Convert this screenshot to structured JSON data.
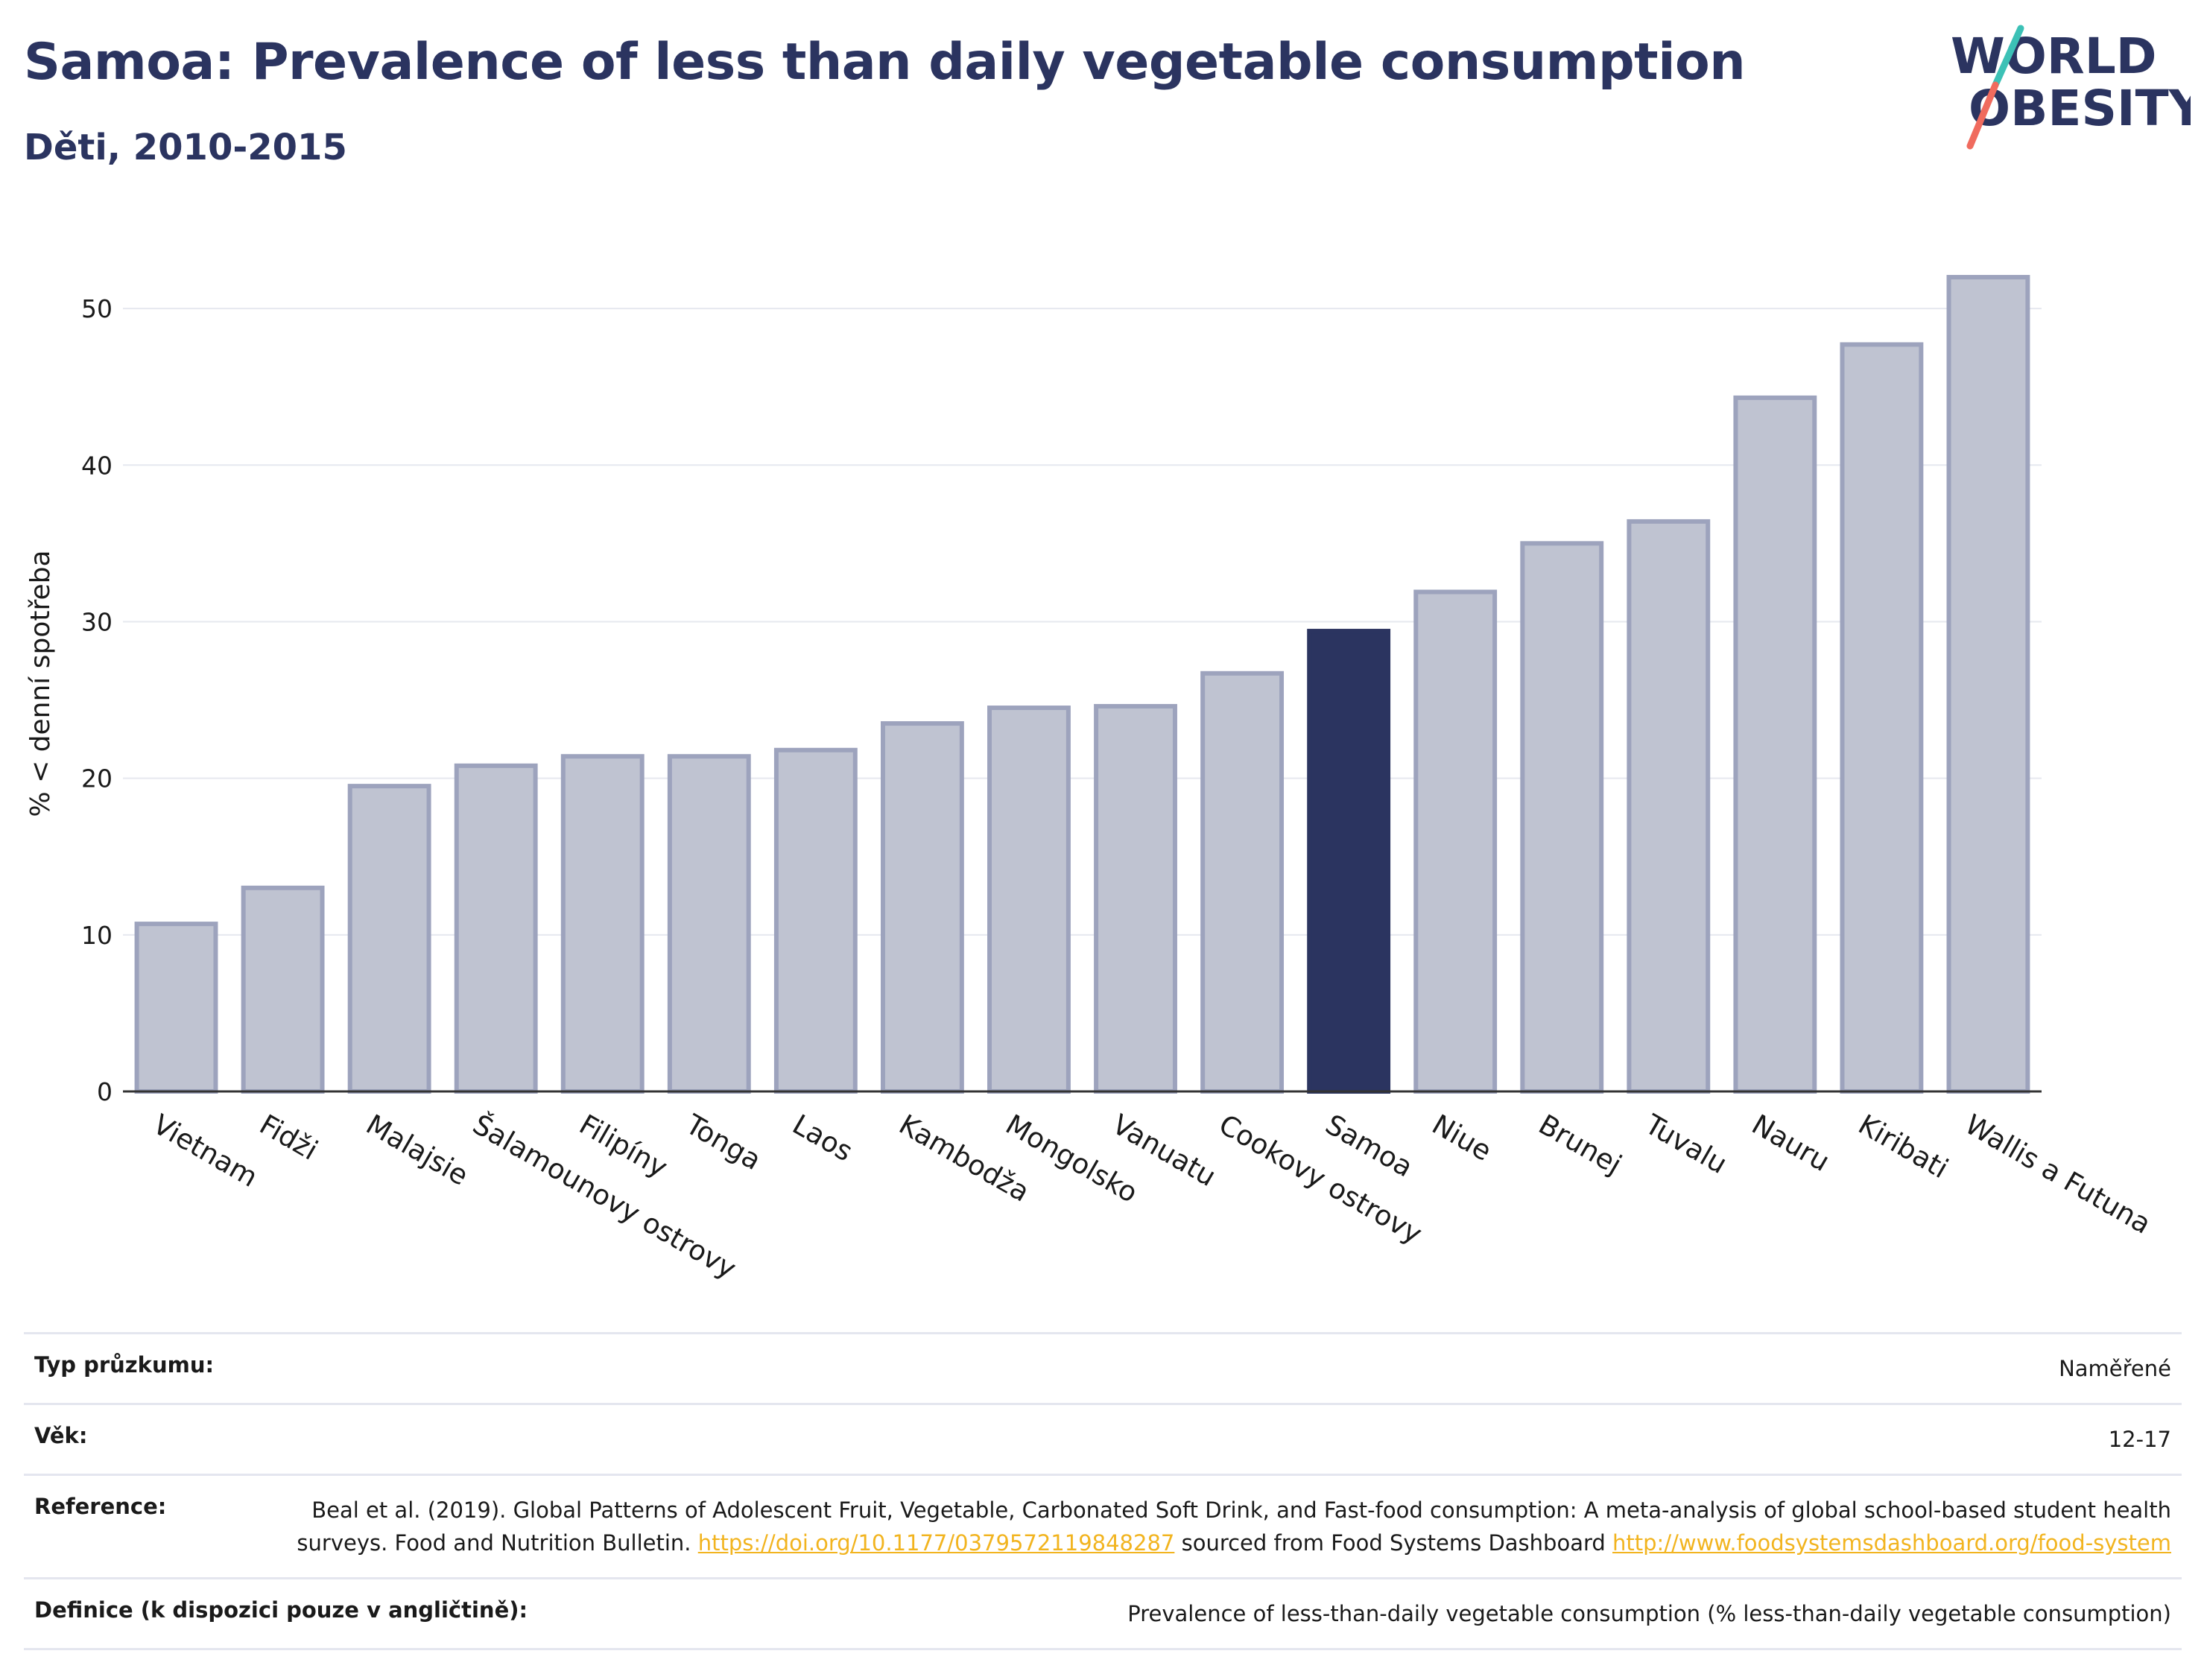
{
  "header": {
    "title": "Samoa: Prevalence of less than daily vegetable consumption",
    "subtitle": "Děti, 2010-2015"
  },
  "logo": {
    "line1": "WORLD",
    "line2": "OBESITY",
    "accent_teal": "#3cc1b6",
    "accent_coral": "#f06b5e"
  },
  "chart_data": {
    "type": "bar",
    "title": "Samoa: Prevalence of less than daily vegetable consumption",
    "subtitle": "Děti, 2010-2015",
    "xlabel": "",
    "ylabel": "% < denní spotřeba",
    "ylim": [
      0,
      54
    ],
    "yticks": [
      0,
      10,
      20,
      30,
      40,
      50
    ],
    "grid": true,
    "highlight": "Samoa",
    "colors": {
      "bar": "#bfc3d1",
      "bar_border": "#9da3bd",
      "highlight": "#2b3460",
      "grid": "#e6e8ef",
      "axis": "#333333"
    },
    "categories": [
      "Vietnam",
      "Fidži",
      "Malajsie",
      "Šalamounovy ostrovy",
      "Filipíny",
      "Tonga",
      "Laos",
      "Kambodža",
      "Mongolsko",
      "Vanuatu",
      "Cookovy ostrovy",
      "Samoa",
      "Niue",
      "Brunej",
      "Tuvalu",
      "Nauru",
      "Kiribati",
      "Wallis a Futuna"
    ],
    "values": [
      10.7,
      13.0,
      19.5,
      20.8,
      21.4,
      21.4,
      21.8,
      23.5,
      24.5,
      24.6,
      26.7,
      29.4,
      31.9,
      35.0,
      36.4,
      44.3,
      47.7,
      52.0
    ]
  },
  "info": {
    "survey_label": "Typ průzkumu:",
    "survey_value": "Naměřené",
    "age_label": "Věk:",
    "age_value": "12-17",
    "reference_label": "Reference:",
    "reference_text1": "Beal et al. (2019). Global Patterns of Adolescent Fruit, Vegetable, Carbonated Soft Drink, and Fast-food consumption: A meta-analysis of global school-based student health surveys. Food and Nutrition Bulletin.",
    "reference_link1": "https://doi.org/10.1177/0379572119848287",
    "reference_text2": "sourced from Food Systems Dashboard",
    "reference_link2": "http://www.foodsystemsdashboard.org/food-system",
    "definition_label": "Definice (k dispozici pouze v angličtině):",
    "definition_value": "Prevalence of less-than-daily vegetable consumption (% less-than-daily vegetable consumption)"
  }
}
